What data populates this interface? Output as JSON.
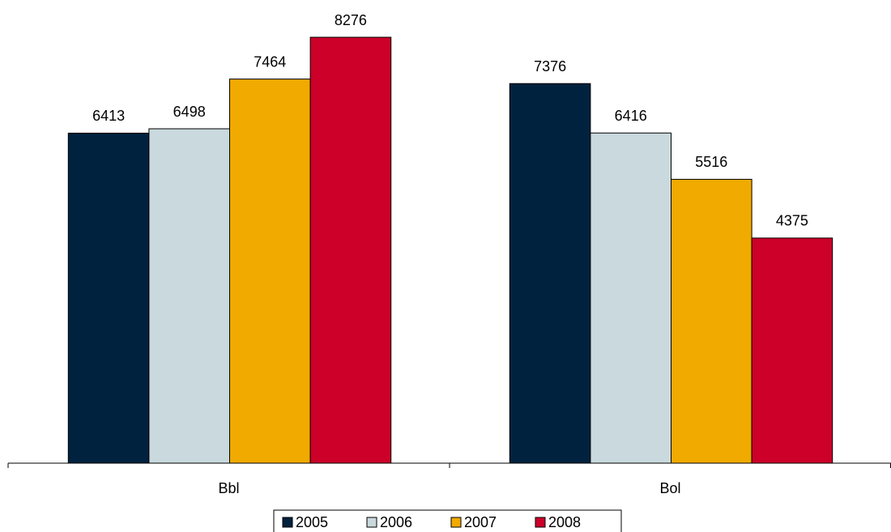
{
  "chart_data": {
    "type": "bar",
    "categories": [
      "Bbl",
      "Bol"
    ],
    "series": [
      {
        "name": "2005",
        "color": "#00223f",
        "values": [
          6413,
          7376
        ]
      },
      {
        "name": "2006",
        "color": "#c9d9dd",
        "values": [
          6498,
          6416
        ]
      },
      {
        "name": "2007",
        "color": "#f0aa00",
        "values": [
          7464,
          5516
        ]
      },
      {
        "name": "2008",
        "color": "#cc0029",
        "values": [
          8276,
          4375
        ]
      }
    ],
    "ylim": [
      0,
      9000
    ],
    "legend": "bottom"
  }
}
